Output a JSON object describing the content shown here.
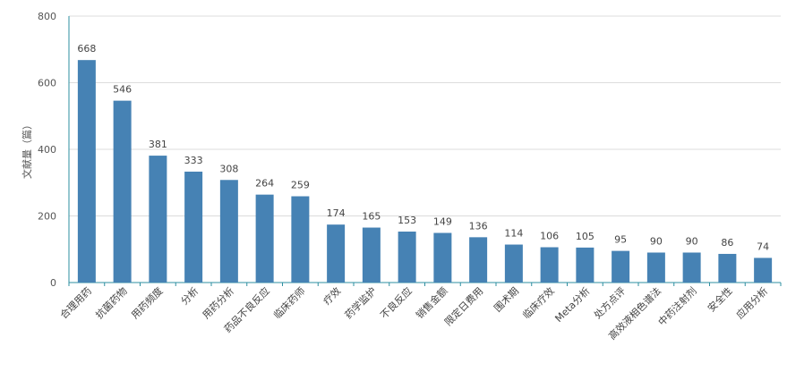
{
  "chart_data": {
    "type": "bar",
    "title": "",
    "xlabel": "",
    "ylabel": "文献量（篇）",
    "ylim": [
      0,
      800
    ],
    "yticks": [
      0,
      200,
      400,
      600,
      800
    ],
    "grid": true,
    "bar_color": "#4682b4",
    "categories": [
      "合理用药",
      "抗菌药物",
      "用药频度",
      "分析",
      "用药分析",
      "药品不良反应",
      "临床药师",
      "疗效",
      "药学监护",
      "不良反应",
      "销售金额",
      "限定日费用",
      "围术期",
      "临床疗效",
      "Meta分析",
      "处方点评",
      "高效液相色谱法",
      "中药注射剂",
      "安全性",
      "应用分析"
    ],
    "values": [
      668,
      546,
      381,
      333,
      308,
      264,
      259,
      174,
      165,
      153,
      149,
      136,
      114,
      106,
      105,
      95,
      90,
      90,
      86,
      74
    ]
  }
}
